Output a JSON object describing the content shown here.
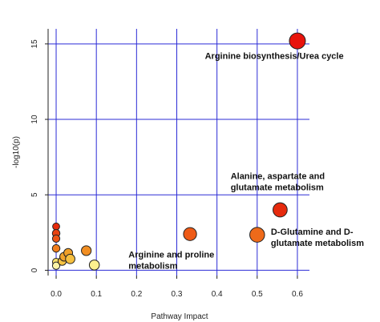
{
  "chart_data": {
    "type": "scatter",
    "title": "",
    "xlabel": "Pathway Impact",
    "ylabel": "-log10(p)",
    "xlim": [
      -0.02,
      0.63
    ],
    "ylim": [
      -0.35,
      16.0
    ],
    "x_ticks": [
      "0.0",
      "0.1",
      "0.2",
      "0.3",
      "0.4",
      "0.5",
      "0.6"
    ],
    "y_ticks": [
      "0",
      "5",
      "10",
      "15"
    ],
    "grid": true,
    "grid_color": "#2b2bd6",
    "points": [
      {
        "x": 0.6,
        "y": 15.2,
        "size": 1.0,
        "color": "#e8130c"
      },
      {
        "x": 0.557,
        "y": 4.0,
        "size": 0.85,
        "color": "#e62a0d"
      },
      {
        "x": 0.5,
        "y": 2.35,
        "size": 0.9,
        "color": "#ee6a1a"
      },
      {
        "x": 0.333,
        "y": 2.4,
        "size": 0.75,
        "color": "#ee5a16"
      },
      {
        "x": 0.0,
        "y": 2.9,
        "size": 0.25,
        "color": "#e62a0d"
      },
      {
        "x": 0.0,
        "y": 2.45,
        "size": 0.3,
        "color": "#e8420f"
      },
      {
        "x": 0.0,
        "y": 2.1,
        "size": 0.28,
        "color": "#ec5414"
      },
      {
        "x": 0.0,
        "y": 1.45,
        "size": 0.3,
        "color": "#f07d1c"
      },
      {
        "x": 0.0,
        "y": 0.55,
        "size": 0.28,
        "color": "#f9e06a"
      },
      {
        "x": 0.0,
        "y": 0.3,
        "size": 0.28,
        "color": "#fdf4a6"
      },
      {
        "x": 0.015,
        "y": 0.6,
        "size": 0.35,
        "color": "#f6c342"
      },
      {
        "x": 0.02,
        "y": 0.9,
        "size": 0.4,
        "color": "#f2a32c"
      },
      {
        "x": 0.03,
        "y": 1.15,
        "size": 0.4,
        "color": "#f1a028"
      },
      {
        "x": 0.035,
        "y": 0.75,
        "size": 0.45,
        "color": "#f6c040"
      },
      {
        "x": 0.075,
        "y": 1.3,
        "size": 0.48,
        "color": "#f18e22"
      },
      {
        "x": 0.095,
        "y": 0.35,
        "size": 0.5,
        "color": "#fdf08e"
      }
    ],
    "annotations": [
      {
        "lines": [
          "Arginine biosynthesis/Urea cycle"
        ],
        "x": 0.37,
        "y": 14.0,
        "anchor": "start"
      },
      {
        "lines": [
          "Alanine, aspartate and",
          "glutamate metabolism"
        ],
        "x": 0.434,
        "y": 6.05,
        "anchor": "start"
      },
      {
        "lines": [
          "D-Glutamine and D-",
          "glutamate metabolism"
        ],
        "x": 0.534,
        "y": 2.35,
        "anchor": "start"
      },
      {
        "lines": [
          "Arginine and proline",
          "metabolism"
        ],
        "x": 0.18,
        "y": 0.85,
        "anchor": "start"
      }
    ]
  }
}
